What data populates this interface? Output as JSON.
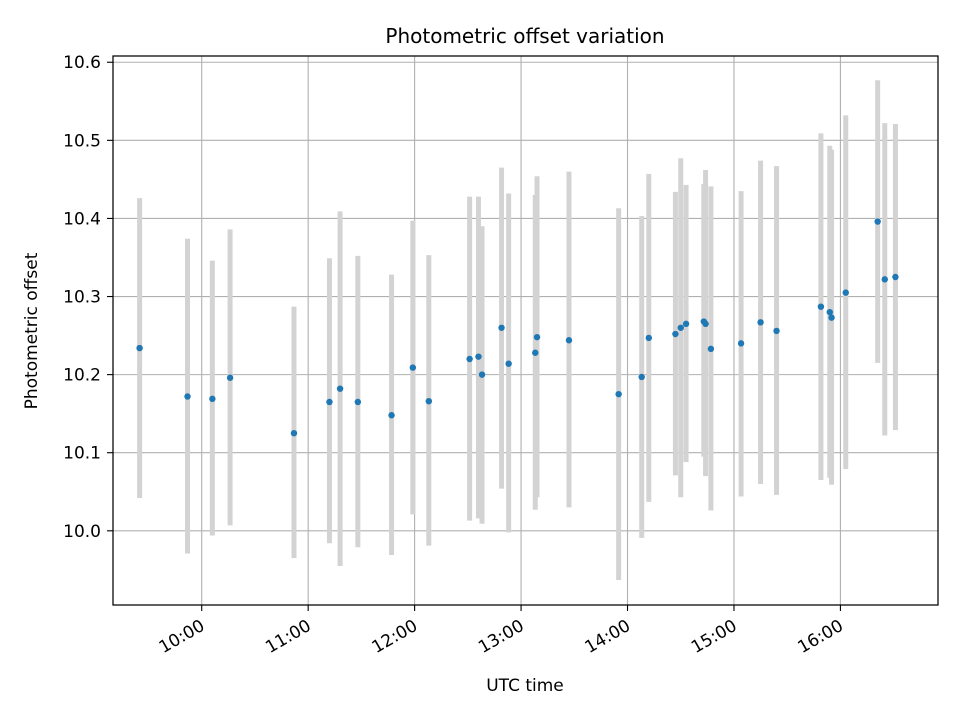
{
  "chart_data": {
    "type": "scatter",
    "title": "Photometric offset variation",
    "xlabel": "UTC time",
    "ylabel": "Photometric offset",
    "x_ticks": [
      "10:00",
      "11:00",
      "12:00",
      "13:00",
      "14:00",
      "15:00",
      "16:00"
    ],
    "y_ticks": [
      "10.0",
      "10.1",
      "10.2",
      "10.3",
      "10.4",
      "10.5",
      "10.6"
    ],
    "xlim": [
      "09:10",
      "16:55"
    ],
    "ylim": [
      9.905,
      10.608
    ],
    "grid": true,
    "marker_color": "#1f77b4",
    "errorbar_color": "#d3d3d3",
    "points": [
      {
        "t": "09:25",
        "y": 10.234,
        "lo": 10.042,
        "hi": 10.426
      },
      {
        "t": "09:52",
        "y": 10.172,
        "lo": 9.971,
        "hi": 10.374
      },
      {
        "t": "10:06",
        "y": 10.169,
        "lo": 9.994,
        "hi": 10.346
      },
      {
        "t": "10:16",
        "y": 10.196,
        "lo": 10.007,
        "hi": 10.386
      },
      {
        "t": "10:52",
        "y": 10.125,
        "lo": 9.965,
        "hi": 10.287
      },
      {
        "t": "11:12",
        "y": 10.165,
        "lo": 9.984,
        "hi": 10.349
      },
      {
        "t": "11:18",
        "y": 10.182,
        "lo": 9.955,
        "hi": 10.409
      },
      {
        "t": "11:28",
        "y": 10.165,
        "lo": 9.979,
        "hi": 10.352
      },
      {
        "t": "11:47",
        "y": 10.148,
        "lo": 9.969,
        "hi": 10.328
      },
      {
        "t": "11:59",
        "y": 10.209,
        "lo": 10.021,
        "hi": 10.397
      },
      {
        "t": "12:08",
        "y": 10.166,
        "lo": 9.981,
        "hi": 10.353
      },
      {
        "t": "12:31",
        "y": 10.22,
        "lo": 10.013,
        "hi": 10.428
      },
      {
        "t": "12:36",
        "y": 10.223,
        "lo": 10.016,
        "hi": 10.428
      },
      {
        "t": "12:38",
        "y": 10.2,
        "lo": 10.009,
        "hi": 10.39
      },
      {
        "t": "12:49",
        "y": 10.26,
        "lo": 10.054,
        "hi": 10.465
      },
      {
        "t": "12:53",
        "y": 10.214,
        "lo": 9.998,
        "hi": 10.432
      },
      {
        "t": "13:08",
        "y": 10.228,
        "lo": 10.027,
        "hi": 10.43
      },
      {
        "t": "13:09",
        "y": 10.248,
        "lo": 10.043,
        "hi": 10.454
      },
      {
        "t": "13:27",
        "y": 10.244,
        "lo": 10.03,
        "hi": 10.46
      },
      {
        "t": "13:55",
        "y": 10.175,
        "lo": 9.937,
        "hi": 10.413
      },
      {
        "t": "14:08",
        "y": 10.197,
        "lo": 9.991,
        "hi": 10.403
      },
      {
        "t": "14:12",
        "y": 10.247,
        "lo": 10.037,
        "hi": 10.457
      },
      {
        "t": "14:27",
        "y": 10.252,
        "lo": 10.071,
        "hi": 10.434
      },
      {
        "t": "14:30",
        "y": 10.26,
        "lo": 10.043,
        "hi": 10.477
      },
      {
        "t": "14:33",
        "y": 10.265,
        "lo": 10.088,
        "hi": 10.443
      },
      {
        "t": "14:43",
        "y": 10.268,
        "lo": 10.095,
        "hi": 10.444
      },
      {
        "t": "14:44",
        "y": 10.265,
        "lo": 10.07,
        "hi": 10.462
      },
      {
        "t": "14:47",
        "y": 10.233,
        "lo": 10.026,
        "hi": 10.441
      },
      {
        "t": "15:04",
        "y": 10.24,
        "lo": 10.044,
        "hi": 10.435
      },
      {
        "t": "15:15",
        "y": 10.267,
        "lo": 10.06,
        "hi": 10.474
      },
      {
        "t": "15:24",
        "y": 10.256,
        "lo": 10.046,
        "hi": 10.467
      },
      {
        "t": "15:49",
        "y": 10.287,
        "lo": 10.065,
        "hi": 10.509
      },
      {
        "t": "15:54",
        "y": 10.28,
        "lo": 10.068,
        "hi": 10.493
      },
      {
        "t": "15:55",
        "y": 10.273,
        "lo": 10.059,
        "hi": 10.488
      },
      {
        "t": "16:03",
        "y": 10.305,
        "lo": 10.079,
        "hi": 10.532
      },
      {
        "t": "16:21",
        "y": 10.396,
        "lo": 10.215,
        "hi": 10.577
      },
      {
        "t": "16:25",
        "y": 10.322,
        "lo": 10.122,
        "hi": 10.522
      },
      {
        "t": "16:31",
        "y": 10.325,
        "lo": 10.129,
        "hi": 10.521
      }
    ]
  }
}
